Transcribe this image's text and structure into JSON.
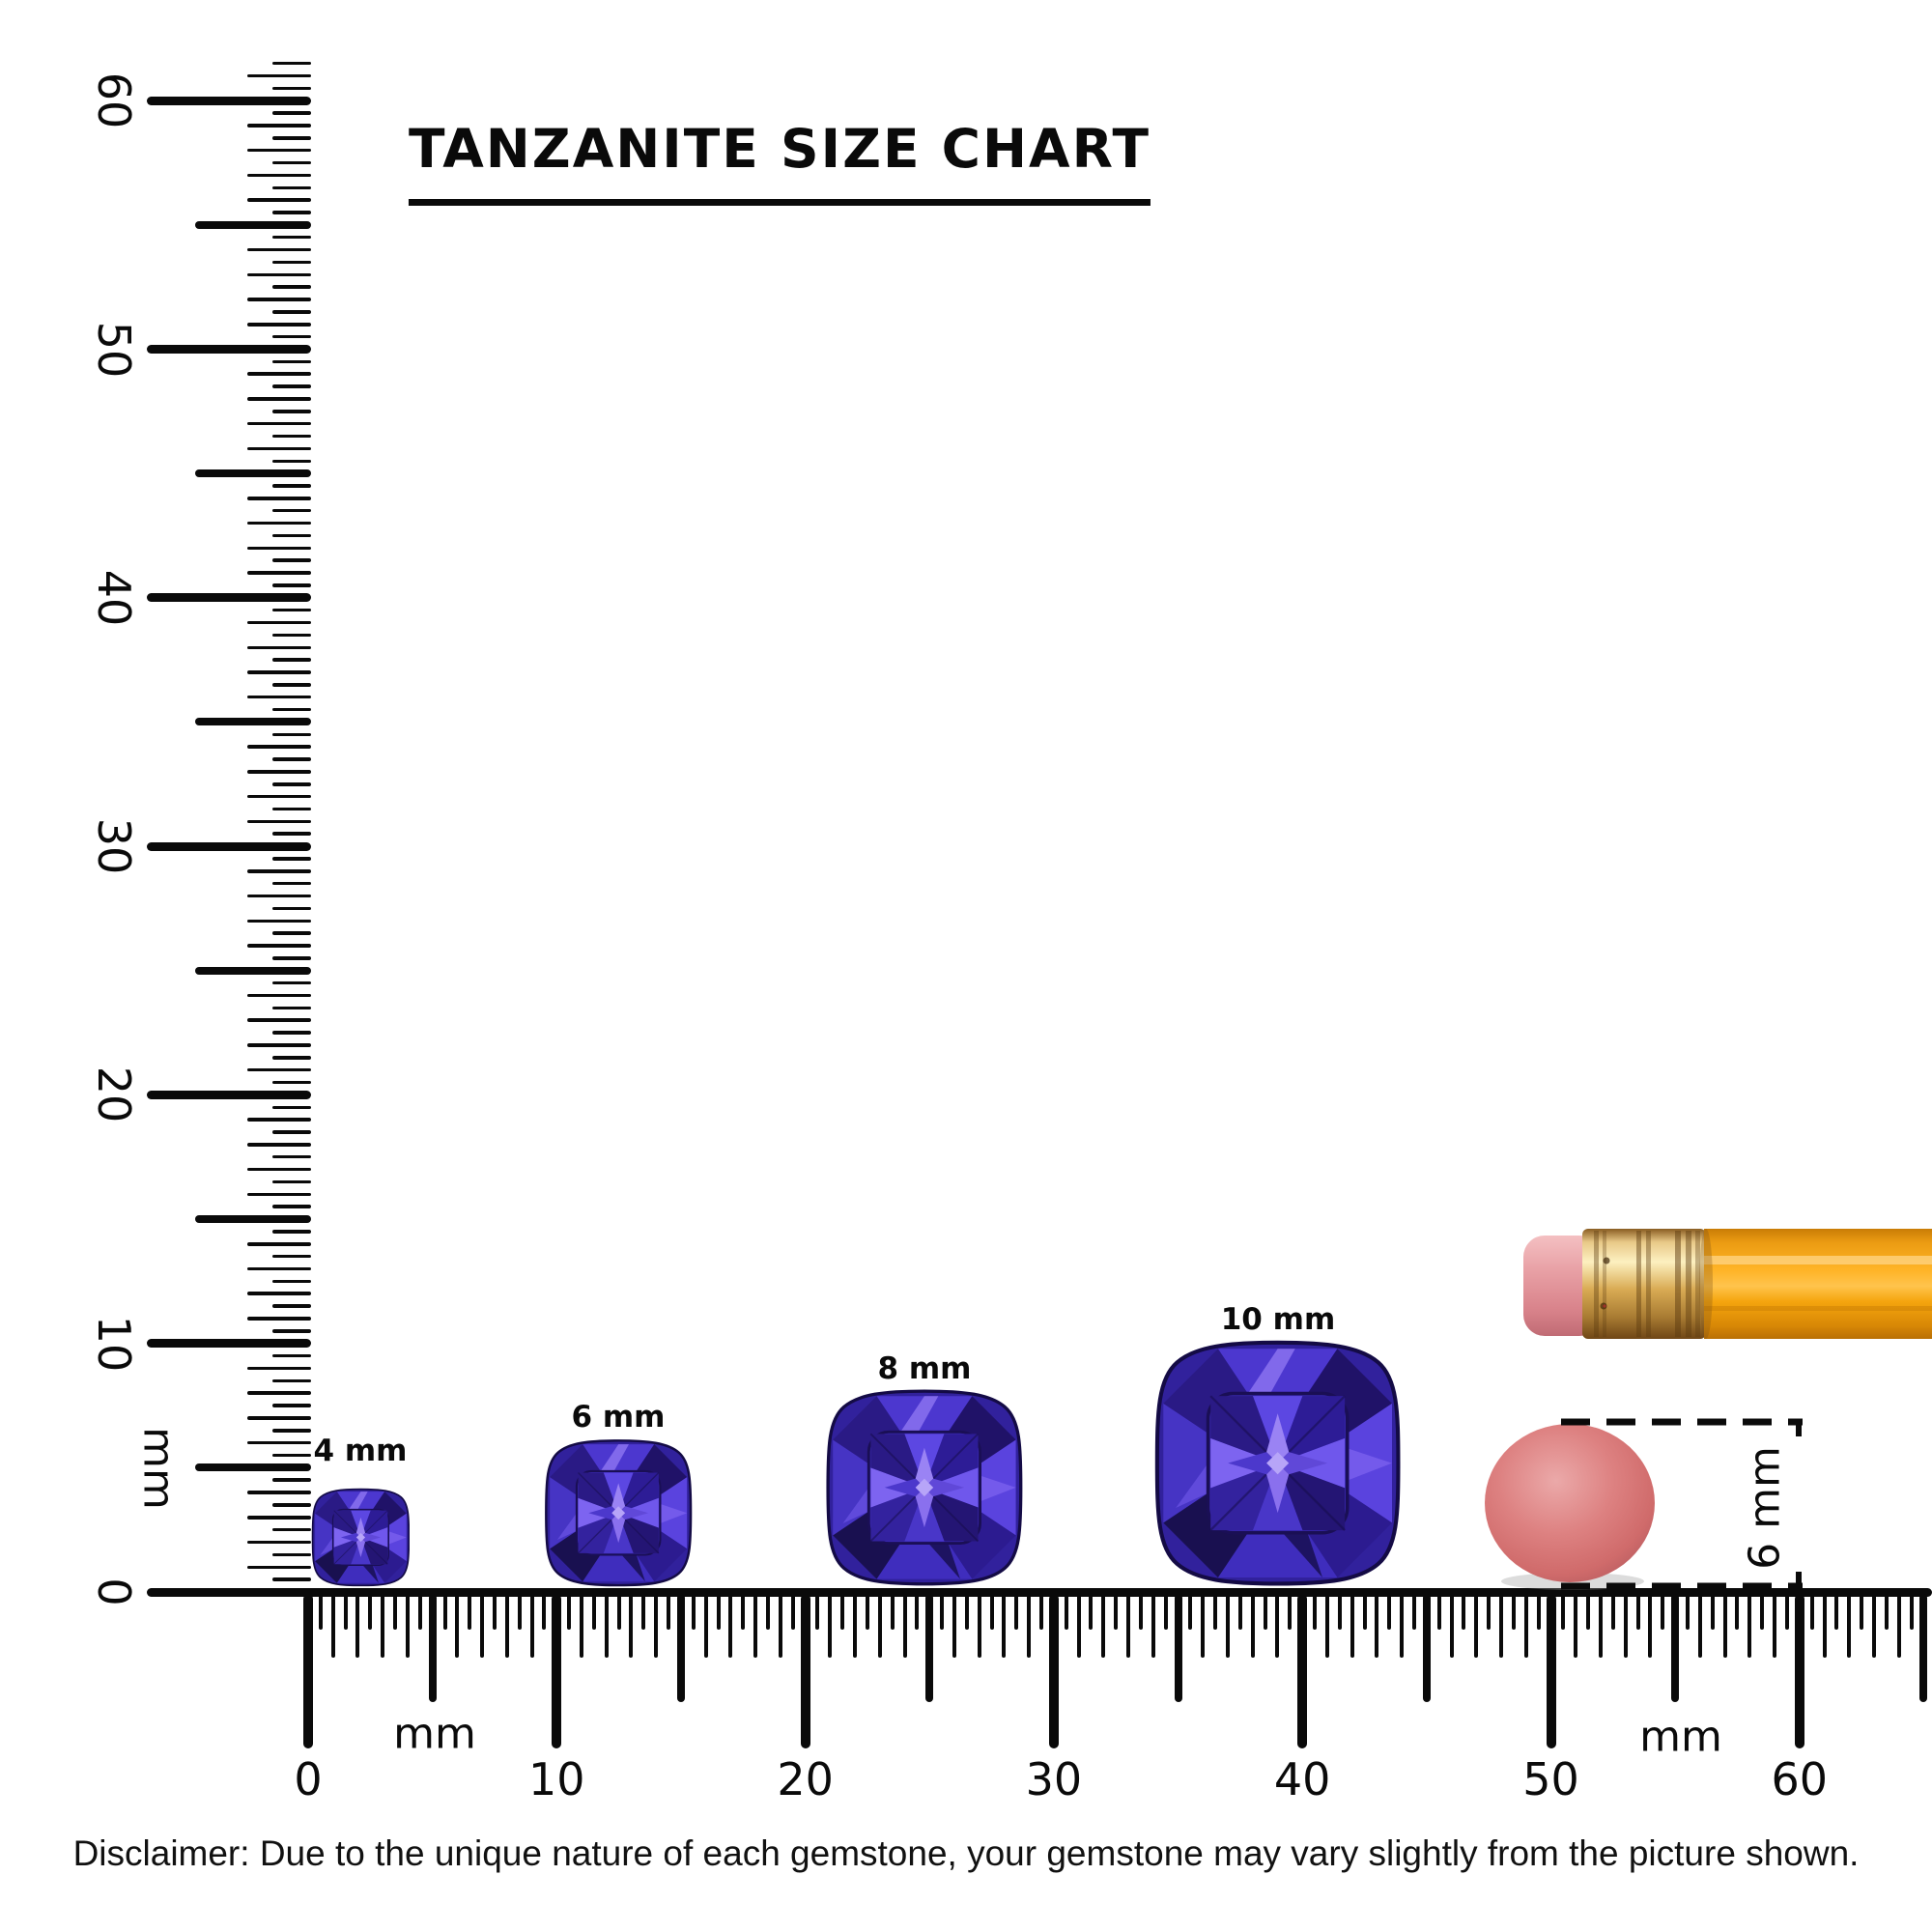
{
  "title": "TANZANITE SIZE CHART",
  "vertical_ruler": {
    "unit": "mm",
    "labels": [
      "0",
      "10",
      "20",
      "30",
      "40",
      "50",
      "60"
    ]
  },
  "horizontal_ruler": {
    "unit_label_left": "mm",
    "unit_label_right": "mm",
    "labels": [
      "0",
      "10",
      "20",
      "30",
      "40",
      "50",
      "60"
    ]
  },
  "gems": [
    {
      "label": "4 mm",
      "size_mm": 4
    },
    {
      "label": "6 mm",
      "size_mm": 6
    },
    {
      "label": "8 mm",
      "size_mm": 8
    },
    {
      "label": "10 mm",
      "size_mm": 10
    }
  ],
  "reference_objects": {
    "pencil": {
      "body_color": "#f9a61a",
      "ferrule_color": "#d9ab54",
      "eraser_color": "#e8a0a5"
    },
    "eraser_disc": {
      "dimension_label": "6 mm",
      "height_mm": 6,
      "color": "#d06b6b"
    }
  },
  "gem_palette": {
    "base": "#3b2ab8",
    "dark": "#1d1160",
    "mid": "#4c37cf",
    "light": "#8f76f2"
  },
  "disclaimer": "Disclaimer: Due to the unique nature of each gemstone, your gemstone may vary slightly from the picture shown."
}
